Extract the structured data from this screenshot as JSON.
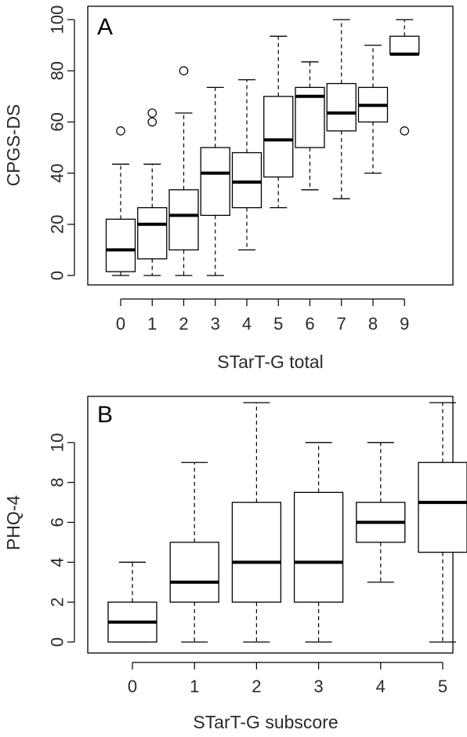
{
  "chart_data": [
    {
      "type": "boxplot",
      "panel_label": "A",
      "xlabel": "STarT-G total",
      "ylabel": "CPGS-DS",
      "categories": [
        "0",
        "1",
        "2",
        "3",
        "4",
        "5",
        "6",
        "7",
        "8",
        "9"
      ],
      "ylim": [
        0,
        100
      ],
      "yticks": [
        "0",
        "20",
        "40",
        "60",
        "80",
        "100"
      ],
      "boxes": [
        {
          "category": "0",
          "whisker_low": 0,
          "q1": 1.5,
          "median": 10,
          "q3": 22,
          "whisker_high": 43.5,
          "outliers": [
            56.5
          ]
        },
        {
          "category": "1",
          "whisker_low": 0,
          "q1": 6.5,
          "median": 20,
          "q3": 26.5,
          "whisker_high": 43.5,
          "outliers": [
            60,
            63.5
          ]
        },
        {
          "category": "2",
          "whisker_low": 0,
          "q1": 10,
          "median": 23.5,
          "q3": 33.5,
          "whisker_high": 63.5,
          "outliers": [
            80
          ]
        },
        {
          "category": "3",
          "whisker_low": 0,
          "q1": 23.5,
          "median": 40,
          "q3": 50,
          "whisker_high": 73.5,
          "outliers": []
        },
        {
          "category": "4",
          "whisker_low": 10,
          "q1": 26.5,
          "median": 36.5,
          "q3": 48,
          "whisker_high": 76.5,
          "outliers": []
        },
        {
          "category": "5",
          "whisker_low": 26.5,
          "q1": 38.5,
          "median": 53,
          "q3": 70,
          "whisker_high": 93.5,
          "outliers": []
        },
        {
          "category": "6",
          "whisker_low": 33.5,
          "q1": 50,
          "median": 70,
          "q3": 73.5,
          "whisker_high": 83.5,
          "outliers": []
        },
        {
          "category": "7",
          "whisker_low": 30,
          "q1": 56.5,
          "median": 63.5,
          "q3": 75,
          "whisker_high": 100,
          "outliers": []
        },
        {
          "category": "8",
          "whisker_low": 40,
          "q1": 60,
          "median": 66.5,
          "q3": 73.5,
          "whisker_high": 90,
          "outliers": []
        },
        {
          "category": "9",
          "whisker_low": 86.5,
          "q1": 86.5,
          "median": 86.5,
          "q3": 93.5,
          "whisker_high": 100,
          "outliers": [
            56.5
          ]
        }
      ]
    },
    {
      "type": "boxplot",
      "panel_label": "B",
      "xlabel": "STarT-G subscore",
      "ylabel": "PHQ-4",
      "categories": [
        "0",
        "1",
        "2",
        "3",
        "4",
        "5"
      ],
      "ylim": [
        0,
        12
      ],
      "yticks": [
        "0",
        "2",
        "4",
        "6",
        "8",
        "10"
      ],
      "boxes": [
        {
          "category": "0",
          "whisker_low": 0,
          "q1": 0,
          "median": 1,
          "q3": 2,
          "whisker_high": 4,
          "outliers": []
        },
        {
          "category": "1",
          "whisker_low": 0,
          "q1": 2,
          "median": 3,
          "q3": 5,
          "whisker_high": 9,
          "outliers": []
        },
        {
          "category": "2",
          "whisker_low": 0,
          "q1": 2,
          "median": 4,
          "q3": 7,
          "whisker_high": 12,
          "outliers": []
        },
        {
          "category": "3",
          "whisker_low": 0,
          "q1": 2,
          "median": 4,
          "q3": 7.5,
          "whisker_high": 10,
          "outliers": []
        },
        {
          "category": "4",
          "whisker_low": 3,
          "q1": 5,
          "median": 6,
          "q3": 7,
          "whisker_high": 10,
          "outliers": []
        },
        {
          "category": "5",
          "whisker_low": 0,
          "q1": 4.5,
          "median": 7,
          "q3": 9,
          "whisker_high": 12,
          "outliers": []
        }
      ]
    }
  ]
}
